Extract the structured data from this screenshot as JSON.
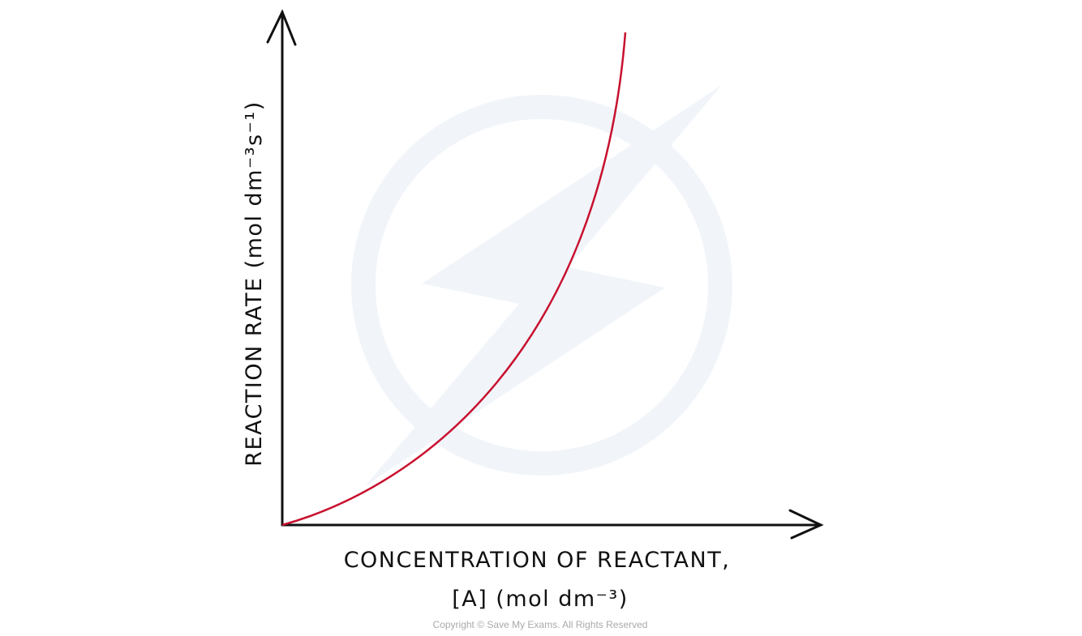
{
  "chart_data": {
    "type": "line",
    "x_label": [
      "CONCENTRATION  OF  REACTANT,",
      "[A] (mol dm⁻³)"
    ],
    "y_label": "REACTION  RATE  (mol dm⁻³s⁻¹)",
    "copyright": "Copyright © Save My Exams. All Rights Reserved",
    "color": "#c8102e"
  }
}
